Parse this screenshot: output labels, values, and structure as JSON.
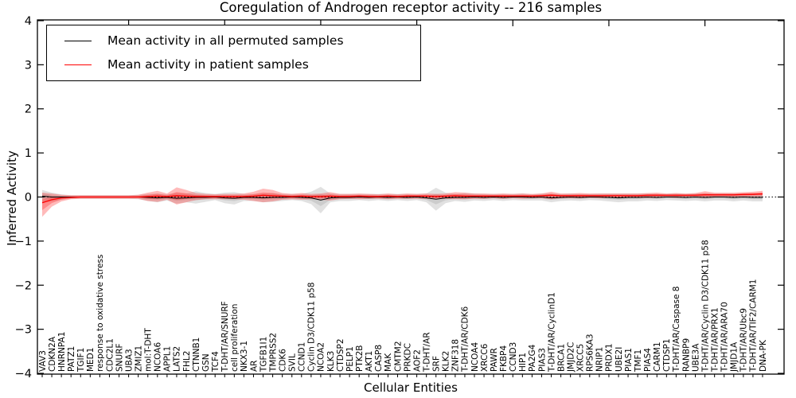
{
  "title": "Coregulation of Androgen receptor activity -- 216 samples",
  "chart_data": {
    "type": "line",
    "title": "Coregulation of Androgen receptor activity -- 216 samples",
    "xlabel": "Cellular Entities",
    "ylabel": "Inferred Activity",
    "ylim": [
      -4,
      4
    ],
    "yticks": [
      -4,
      -3,
      -2,
      -1,
      0,
      1,
      2,
      3,
      4
    ],
    "grid": false,
    "zero_line_style": "dotted",
    "legend_position": "upper left",
    "categories": [
      "VAV3",
      "CDKN2A",
      "HNRNPA1",
      "PATZ1",
      "TGIF1",
      "MED1",
      "response to oxidative stress",
      "CDC2L1",
      "SNURF",
      "UBA3",
      "ZMIZ1",
      "mol:T-DHT",
      "NCOA6",
      "APPL1",
      "LATS2",
      "FHL2",
      "CTNNB1",
      "GSN",
      "TCF4",
      "T-DHT/AR/SNURF",
      "cell proliferation",
      "NKX3-1",
      "AR",
      "TGFB1I1",
      "TMPRSS2",
      "CDK6",
      "SVIL",
      "CCND1",
      "Cyclin D3/CDK11 p58",
      "NCOA2",
      "KLK3",
      "CTDSP2",
      "PELP1",
      "PTK2B",
      "AKT1",
      "CASP8",
      "MAK",
      "CMTM2",
      "PRKDC",
      "AOF2",
      "T-DHT/AR",
      "SRF",
      "KLK2",
      "ZNF318",
      "T-DHT/AR/CDK6",
      "NCOA4",
      "XRCC6",
      "PAWR",
      "FKBP4",
      "CCND3",
      "HIP1",
      "PA2G4",
      "PIAS3",
      "T-DHT/AR/CyclinD1",
      "BRCA1",
      "JMJD2C",
      "XRCC5",
      "RPS6KA3",
      "NRIP1",
      "PRDX1",
      "UBE2I",
      "PIAS1",
      "TMF1",
      "PIAS4",
      "CARM1",
      "CTDSP1",
      "T-DHT/AR/Caspase 8",
      "RANBP9",
      "UBE3A",
      "T-DHT/AR/Cyclin D3/CDK11 p58",
      "T-DHT/AR/PRX1",
      "T-DHT/AR/ARA70",
      "JMJD1A",
      "T-DHT/AR/Ubc9",
      "T-DHT/AR/TIF2/CARM1",
      "DNA-PK"
    ],
    "series": [
      {
        "name": "Mean activity in all permuted samples",
        "color": "#000000",
        "values": [
          0.02,
          0.0,
          0.0,
          0.0,
          0.0,
          0.0,
          0.0,
          0.0,
          0.0,
          0.0,
          0.0,
          -0.01,
          -0.02,
          -0.01,
          -0.03,
          -0.02,
          -0.01,
          -0.01,
          0.0,
          -0.02,
          -0.03,
          -0.01,
          -0.01,
          -0.02,
          -0.01,
          -0.01,
          0.0,
          -0.01,
          -0.02,
          -0.07,
          -0.02,
          -0.01,
          -0.01,
          0.0,
          -0.01,
          0.0,
          -0.01,
          0.0,
          -0.01,
          0.0,
          -0.02,
          -0.05,
          -0.02,
          -0.01,
          -0.01,
          0.0,
          -0.01,
          0.0,
          -0.01,
          0.0,
          0.0,
          -0.01,
          0.0,
          -0.02,
          -0.01,
          0.0,
          -0.01,
          0.0,
          0.0,
          -0.01,
          -0.02,
          -0.01,
          -0.01,
          0.0,
          -0.01,
          0.0,
          0.0,
          -0.01,
          0.0,
          -0.01,
          0.0,
          0.0,
          -0.01,
          0.0,
          -0.01,
          -0.01
        ]
      },
      {
        "name": "Mean activity in patient samples",
        "color": "#ff0000",
        "values": [
          -0.13,
          -0.06,
          -0.02,
          -0.01,
          0.0,
          0.0,
          0.0,
          0.0,
          0.0,
          0.0,
          0.0,
          0.01,
          0.02,
          0.01,
          0.03,
          0.02,
          0.01,
          0.01,
          0.01,
          0.01,
          0.01,
          0.01,
          0.02,
          0.04,
          0.03,
          0.02,
          0.01,
          0.02,
          0.01,
          0.01,
          0.02,
          0.01,
          0.01,
          0.02,
          0.01,
          0.01,
          0.02,
          0.01,
          0.02,
          0.02,
          0.02,
          0.01,
          0.02,
          0.03,
          0.02,
          0.02,
          0.02,
          0.02,
          0.02,
          0.02,
          0.02,
          0.02,
          0.03,
          0.04,
          0.03,
          0.03,
          0.03,
          0.03,
          0.03,
          0.03,
          0.03,
          0.03,
          0.03,
          0.04,
          0.04,
          0.04,
          0.04,
          0.04,
          0.04,
          0.05,
          0.05,
          0.05,
          0.05,
          0.06,
          0.06,
          0.07
        ]
      }
    ],
    "bands": [
      {
        "name": "permuted-samples-envelope",
        "color": "#9a9a9a",
        "opacity": 0.3,
        "upper": [
          0.16,
          0.1,
          0.06,
          0.04,
          0.04,
          0.04,
          0.04,
          0.04,
          0.04,
          0.04,
          0.05,
          0.07,
          0.08,
          0.06,
          0.09,
          0.08,
          0.13,
          0.09,
          0.07,
          0.1,
          0.11,
          0.07,
          0.07,
          0.08,
          0.09,
          0.07,
          0.07,
          0.07,
          0.12,
          0.23,
          0.08,
          0.07,
          0.07,
          0.07,
          0.07,
          0.07,
          0.07,
          0.07,
          0.07,
          0.07,
          0.08,
          0.21,
          0.1,
          0.07,
          0.09,
          0.08,
          0.07,
          0.07,
          0.07,
          0.07,
          0.08,
          0.06,
          0.08,
          0.08,
          0.07,
          0.08,
          0.07,
          0.07,
          0.08,
          0.08,
          0.08,
          0.08,
          0.08,
          0.08,
          0.07,
          0.07,
          0.08,
          0.07,
          0.08,
          0.08,
          0.08,
          0.08,
          0.08,
          0.08,
          0.08,
          0.08
        ],
        "lower": [
          -0.12,
          -0.1,
          -0.06,
          -0.04,
          -0.04,
          -0.04,
          -0.04,
          -0.04,
          -0.04,
          -0.04,
          -0.05,
          -0.09,
          -0.12,
          -0.08,
          -0.15,
          -0.12,
          -0.15,
          -0.11,
          -0.07,
          -0.14,
          -0.17,
          -0.09,
          -0.09,
          -0.12,
          -0.11,
          -0.09,
          -0.07,
          -0.09,
          -0.16,
          -0.37,
          -0.12,
          -0.09,
          -0.09,
          -0.07,
          -0.09,
          -0.07,
          -0.09,
          -0.07,
          -0.09,
          -0.07,
          -0.12,
          -0.31,
          -0.14,
          -0.09,
          -0.11,
          -0.08,
          -0.09,
          -0.07,
          -0.09,
          -0.07,
          -0.08,
          -0.08,
          -0.08,
          -0.12,
          -0.09,
          -0.08,
          -0.09,
          -0.07,
          -0.08,
          -0.1,
          -0.12,
          -0.1,
          -0.1,
          -0.08,
          -0.09,
          -0.07,
          -0.08,
          -0.09,
          -0.08,
          -0.1,
          -0.08,
          -0.08,
          -0.1,
          -0.08,
          -0.1,
          -0.1
        ]
      },
      {
        "name": "patient-samples-envelope",
        "color": "#ff1a1a",
        "opacity": 0.3,
        "upper": [
          0.1,
          0.08,
          0.05,
          0.04,
          0.04,
          0.04,
          0.04,
          0.04,
          0.04,
          0.04,
          0.05,
          0.1,
          0.14,
          0.08,
          0.22,
          0.16,
          0.09,
          0.07,
          0.06,
          0.07,
          0.07,
          0.08,
          0.12,
          0.19,
          0.16,
          0.09,
          0.07,
          0.09,
          0.07,
          0.08,
          0.11,
          0.07,
          0.07,
          0.08,
          0.07,
          0.06,
          0.08,
          0.06,
          0.08,
          0.07,
          0.08,
          0.07,
          0.08,
          0.11,
          0.1,
          0.08,
          0.08,
          0.07,
          0.08,
          0.07,
          0.08,
          0.07,
          0.08,
          0.12,
          0.08,
          0.08,
          0.09,
          0.08,
          0.08,
          0.08,
          0.08,
          0.08,
          0.08,
          0.09,
          0.1,
          0.08,
          0.09,
          0.08,
          0.09,
          0.13,
          0.1,
          0.1,
          0.1,
          0.11,
          0.12,
          0.14
        ],
        "lower": [
          -0.45,
          -0.22,
          -0.1,
          -0.05,
          -0.04,
          -0.04,
          -0.04,
          -0.04,
          -0.04,
          -0.04,
          -0.04,
          -0.09,
          -0.11,
          -0.06,
          -0.17,
          -0.12,
          -0.07,
          -0.05,
          -0.05,
          -0.05,
          -0.05,
          -0.06,
          -0.09,
          -0.12,
          -0.1,
          -0.06,
          -0.05,
          -0.06,
          -0.05,
          -0.06,
          -0.08,
          -0.05,
          -0.04,
          -0.05,
          -0.04,
          -0.04,
          -0.05,
          -0.04,
          -0.04,
          -0.04,
          -0.04,
          -0.05,
          -0.04,
          -0.05,
          -0.05,
          -0.04,
          -0.04,
          -0.03,
          -0.04,
          -0.03,
          -0.04,
          -0.03,
          -0.03,
          -0.05,
          -0.03,
          -0.03,
          -0.03,
          -0.02,
          -0.03,
          -0.02,
          -0.02,
          -0.02,
          -0.02,
          -0.02,
          -0.02,
          -0.01,
          -0.02,
          -0.01,
          -0.01,
          -0.02,
          -0.01,
          0.0,
          -0.01,
          0.0,
          0.01,
          0.01
        ]
      }
    ]
  },
  "legend": {
    "items": [
      {
        "label": "Mean activity in all permuted samples",
        "color": "#000000"
      },
      {
        "label": "Mean activity in patient samples",
        "color": "#ff0000"
      }
    ]
  },
  "axes": {
    "xlabel": "Cellular Entities",
    "ylabel": "Inferred Activity"
  }
}
